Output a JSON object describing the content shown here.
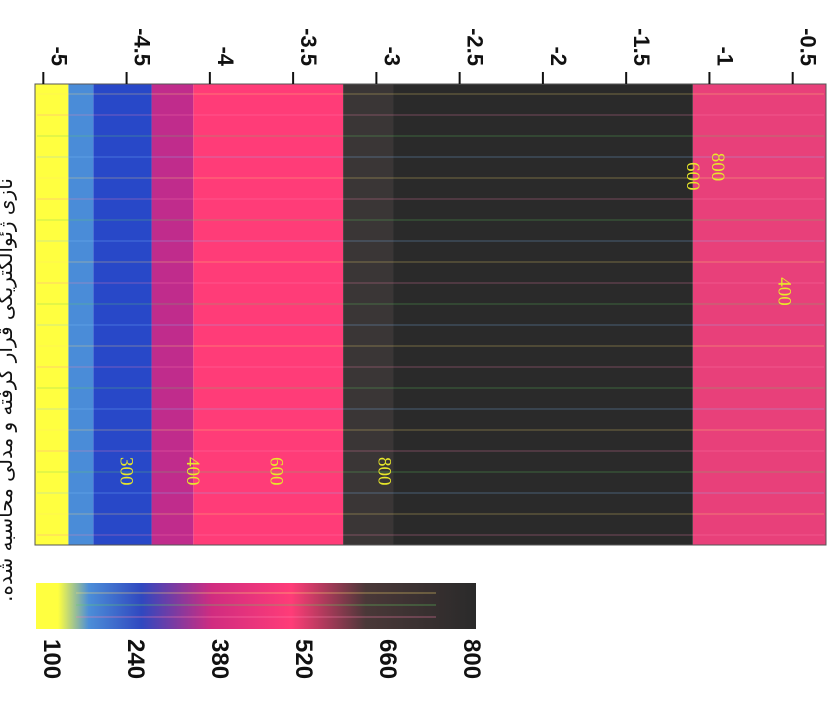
{
  "chart_data": {
    "type": "heatmap",
    "orientation": "rotated-90-clockwise",
    "axis": {
      "ticks": [
        "-0.5",
        "-1",
        "-1.5",
        "-2",
        "-2.5",
        "-3",
        "-3.5",
        "-4",
        "-4.5",
        "-5"
      ],
      "values": [
        -0.5,
        -1,
        -1.5,
        -2,
        -2.5,
        -3,
        -3.5,
        -4,
        -4.5,
        -5
      ],
      "range": [
        -5.05,
        -0.3
      ]
    },
    "bands": [
      {
        "from": -0.3,
        "to": -1.1,
        "level": 600
      },
      {
        "from": -1.1,
        "to": -2.9,
        "level": 800
      },
      {
        "from": -2.9,
        "to": -3.2,
        "level": 700
      },
      {
        "from": -3.2,
        "to": -4.1,
        "level": 500
      },
      {
        "from": -4.1,
        "to": -4.35,
        "level": 350
      },
      {
        "from": -4.35,
        "to": -4.7,
        "level": 250
      },
      {
        "from": -4.7,
        "to": -4.85,
        "level": 180
      },
      {
        "from": -4.85,
        "to": -5.05,
        "level": 100
      }
    ],
    "contour_labels": [
      {
        "text": "600",
        "depth": -1.1,
        "pos": 0.2
      },
      {
        "text": "800",
        "depth": -0.95,
        "pos": 0.18
      },
      {
        "text": "400",
        "depth": -0.55,
        "pos": 0.45
      },
      {
        "text": "800",
        "depth": -2.95,
        "pos": 0.84
      },
      {
        "text": "600",
        "depth": -3.6,
        "pos": 0.84
      },
      {
        "text": "400",
        "depth": -4.1,
        "pos": 0.84
      },
      {
        "text": "300",
        "depth": -4.5,
        "pos": 0.84
      }
    ],
    "colorbar": {
      "ticks": [
        "800",
        "660",
        "520",
        "380",
        "240",
        "100"
      ],
      "values": [
        800,
        660,
        520,
        380,
        240,
        100
      ],
      "colors": {
        "800": "#2a2a2a",
        "660": "#3a3636",
        "600": "#e8407a",
        "520": "#ff3c78",
        "380": "#c02c8c",
        "240": "#2848c8",
        "180": "#4a8cd8",
        "100": "#ffff40"
      }
    },
    "caption": "نازی ژئوالکتریکی قرار گرفته و مدلی محاسبه شده."
  }
}
